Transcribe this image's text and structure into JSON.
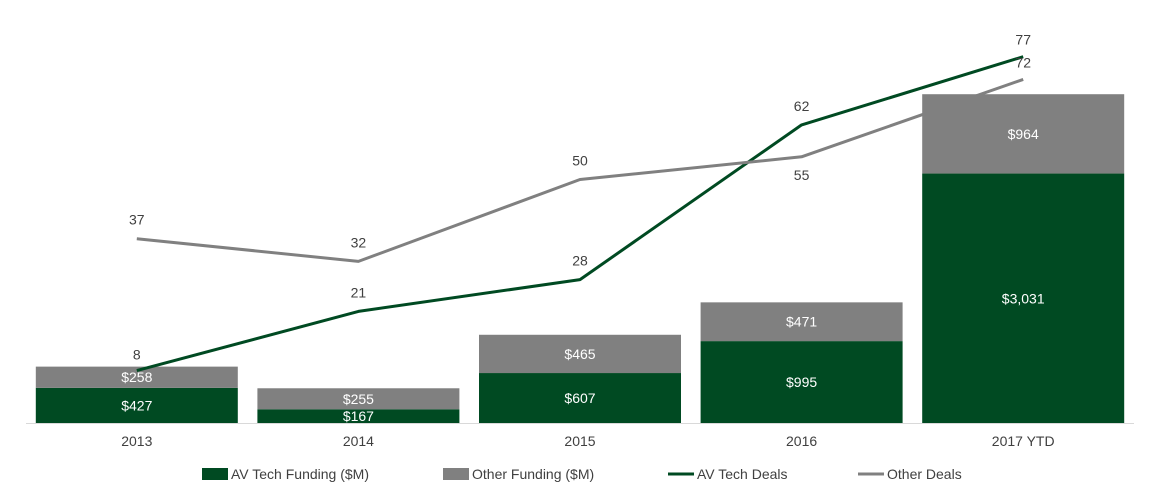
{
  "chart_data": {
    "type": "bar",
    "categories": [
      "2013",
      "2014",
      "2015",
      "2016",
      "2017 YTD"
    ],
    "bar_series": [
      {
        "name": "AV Tech Funding ($M)",
        "values": [
          427,
          167,
          607,
          995,
          3031
        ],
        "labels": [
          "$427",
          "$167",
          "$607",
          "$995",
          "$3,031"
        ],
        "color": "#004a22"
      },
      {
        "name": "Other Funding ($M)",
        "values": [
          258,
          255,
          465,
          471,
          964
        ],
        "labels": [
          "$258",
          "$255",
          "$465",
          "$471",
          "$964"
        ],
        "color": "#808080"
      }
    ],
    "line_series": [
      {
        "name": "AV Tech Deals",
        "values": [
          8,
          21,
          28,
          62,
          77
        ],
        "color": "#004a22"
      },
      {
        "name": "Other Deals",
        "values": [
          37,
          32,
          50,
          55,
          72
        ],
        "color": "#808080"
      }
    ],
    "stacked": true,
    "title": "",
    "xlabel": "",
    "ylabel": "",
    "grid": false,
    "legend": "bottom"
  }
}
